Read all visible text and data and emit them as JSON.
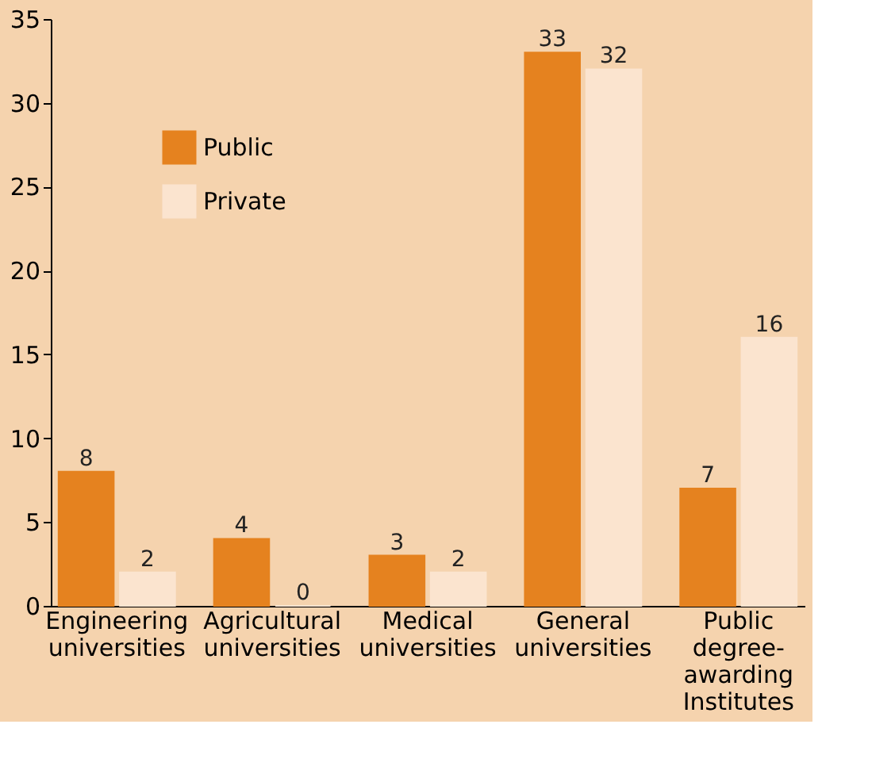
{
  "chart_data": {
    "type": "bar",
    "categories": [
      "Engineering universities",
      "Agricultural universities",
      "Medical universities",
      "General universities",
      "Public degree-awarding Institutes"
    ],
    "series": [
      {
        "name": "Public",
        "color": "#e5821f",
        "values": [
          8,
          4,
          3,
          33,
          7
        ]
      },
      {
        "name": "Private",
        "color": "#fbe4cf",
        "values": [
          2,
          0,
          2,
          32,
          16
        ]
      }
    ],
    "ylim": [
      0,
      35
    ],
    "yticks": [
      0,
      5,
      10,
      15,
      20,
      25,
      30,
      35
    ],
    "grid": false,
    "legend": "top left",
    "data_labels": true
  }
}
